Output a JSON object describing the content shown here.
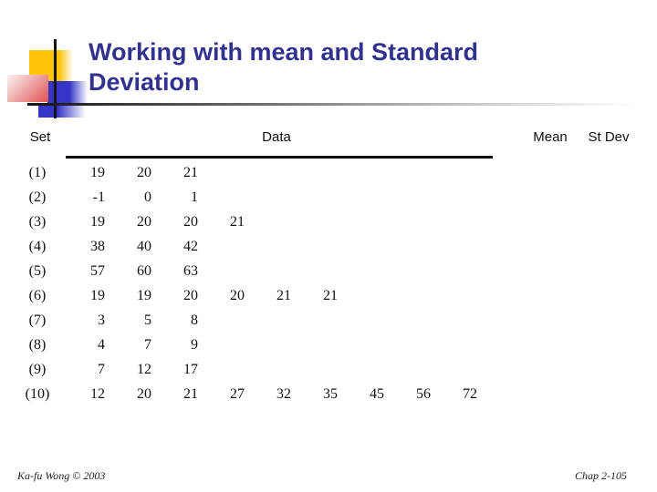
{
  "title": "Working with mean and Standard Deviation",
  "table": {
    "headers": {
      "set": "Set",
      "data": "Data",
      "mean": "Mean",
      "stdev": "St Dev"
    },
    "rows": [
      {
        "label": "(1)",
        "values": [
          "19",
          "20",
          "21"
        ]
      },
      {
        "label": "(2)",
        "values": [
          "-1",
          "0",
          "1"
        ]
      },
      {
        "label": "(3)",
        "values": [
          "19",
          "20",
          "20",
          "21"
        ]
      },
      {
        "label": "(4)",
        "values": [
          "38",
          "40",
          "42"
        ]
      },
      {
        "label": "(5)",
        "values": [
          "57",
          "60",
          "63"
        ]
      },
      {
        "label": "(6)",
        "values": [
          "19",
          "19",
          "20",
          "20",
          "21",
          "21"
        ]
      },
      {
        "label": "(7)",
        "values": [
          "3",
          "5",
          "8"
        ]
      },
      {
        "label": "(8)",
        "values": [
          "4",
          "7",
          "9"
        ]
      },
      {
        "label": "(9)",
        "values": [
          "7",
          "12",
          "17"
        ]
      },
      {
        "label": "(10)",
        "values": [
          "12",
          "20",
          "21",
          "27",
          "32",
          "35",
          "45",
          "56",
          "72"
        ]
      }
    ],
    "max_data_columns": 9
  },
  "footer": {
    "left": "Ka-fu Wong © 2003",
    "right": "Chap 2-105"
  },
  "colors": {
    "title_text": "#32328e",
    "accent_yellow": "#ffc408",
    "accent_blue": "#3535c8",
    "accent_red": "#e05050",
    "rule_black": "#141414"
  }
}
